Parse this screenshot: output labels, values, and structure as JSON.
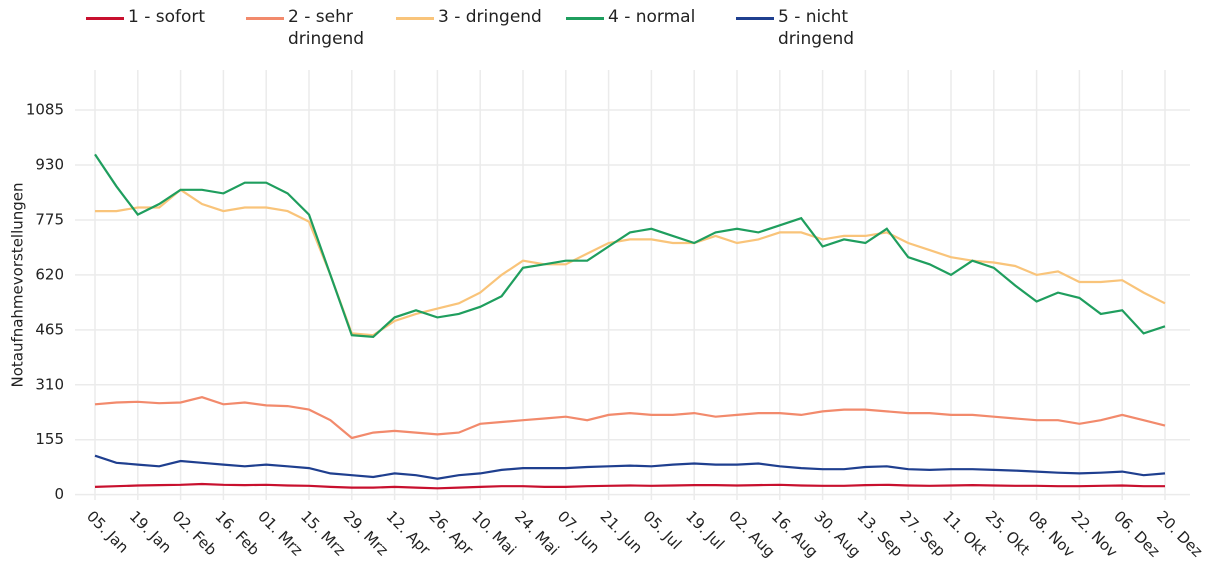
{
  "chart_data": {
    "type": "line",
    "y_label": "Notaufnahmevorstellungen",
    "categories": [
      "05. Jan",
      null,
      "19. Jan",
      null,
      "02. Feb",
      null,
      "16. Feb",
      null,
      "01. Mrz",
      null,
      "15. Mrz",
      null,
      "29. Mrz",
      null,
      "12. Apr",
      null,
      "26. Apr",
      null,
      "10. Mai",
      null,
      "24. Mai",
      null,
      "07. Jun",
      null,
      "21. Jun",
      null,
      "05. Jul",
      null,
      "19. Jul",
      null,
      "02. Aug",
      null,
      "16. Aug",
      null,
      "30. Aug",
      null,
      "13. Sep",
      null,
      "27. Sep",
      null,
      "11. Okt",
      null,
      "25. Okt",
      null,
      "08. Nov",
      null,
      "22. Nov",
      null,
      "06. Dez",
      null,
      "20. Dez"
    ],
    "ylim": [
      -15,
      1198
    ],
    "yticks": [
      0,
      155,
      310,
      465,
      620,
      775,
      930,
      1085
    ],
    "grid": true,
    "series": [
      {
        "name": "1 - sofort",
        "color": "#c8102e",
        "values": [
          22,
          24,
          26,
          27,
          28,
          30,
          28,
          27,
          28,
          26,
          25,
          22,
          20,
          20,
          22,
          20,
          18,
          20,
          22,
          24,
          24,
          22,
          22,
          24,
          25,
          26,
          25,
          26,
          27,
          27,
          26,
          27,
          28,
          26,
          25,
          25,
          27,
          28,
          26,
          25,
          26,
          27,
          26,
          25,
          25,
          24,
          24,
          25,
          26,
          24,
          24
        ]
      },
      {
        "name": "2 - sehr dringend",
        "color": "#f28a6c",
        "values": [
          255,
          260,
          262,
          258,
          260,
          275,
          255,
          260,
          252,
          250,
          240,
          210,
          160,
          175,
          180,
          175,
          170,
          175,
          200,
          205,
          210,
          215,
          220,
          210,
          225,
          230,
          225,
          225,
          230,
          220,
          225,
          230,
          230,
          225,
          235,
          240,
          240,
          235,
          230,
          230,
          225,
          225,
          220,
          215,
          210,
          210,
          200,
          210,
          225,
          210,
          195
        ]
      },
      {
        "name": "3 - dringend",
        "color": "#f9c47a",
        "values": [
          800,
          800,
          810,
          810,
          860,
          820,
          800,
          810,
          810,
          800,
          770,
          620,
          455,
          450,
          490,
          510,
          525,
          540,
          570,
          620,
          660,
          650,
          650,
          680,
          710,
          720,
          720,
          710,
          710,
          730,
          710,
          720,
          740,
          740,
          720,
          730,
          730,
          740,
          710,
          690,
          670,
          660,
          655,
          645,
          620,
          630,
          600,
          600,
          605,
          570,
          540
        ]
      },
      {
        "name": "4 - normal",
        "color": "#1f9e5e",
        "values": [
          960,
          870,
          790,
          820,
          860,
          860,
          850,
          880,
          880,
          850,
          790,
          620,
          450,
          445,
          500,
          520,
          500,
          510,
          530,
          560,
          640,
          650,
          660,
          660,
          700,
          740,
          750,
          730,
          710,
          740,
          750,
          740,
          760,
          780,
          700,
          720,
          710,
          750,
          670,
          650,
          620,
          660,
          640,
          590,
          545,
          570,
          555,
          510,
          520,
          455,
          475
        ]
      },
      {
        "name": "5 - nicht dringend",
        "color": "#1f3f8f",
        "values": [
          110,
          90,
          85,
          80,
          95,
          90,
          85,
          80,
          85,
          80,
          75,
          60,
          55,
          50,
          60,
          55,
          45,
          55,
          60,
          70,
          75,
          75,
          75,
          78,
          80,
          82,
          80,
          85,
          88,
          85,
          85,
          88,
          80,
          75,
          72,
          72,
          78,
          80,
          72,
          70,
          72,
          72,
          70,
          68,
          65,
          62,
          60,
          62,
          65,
          55,
          60
        ]
      }
    ]
  }
}
